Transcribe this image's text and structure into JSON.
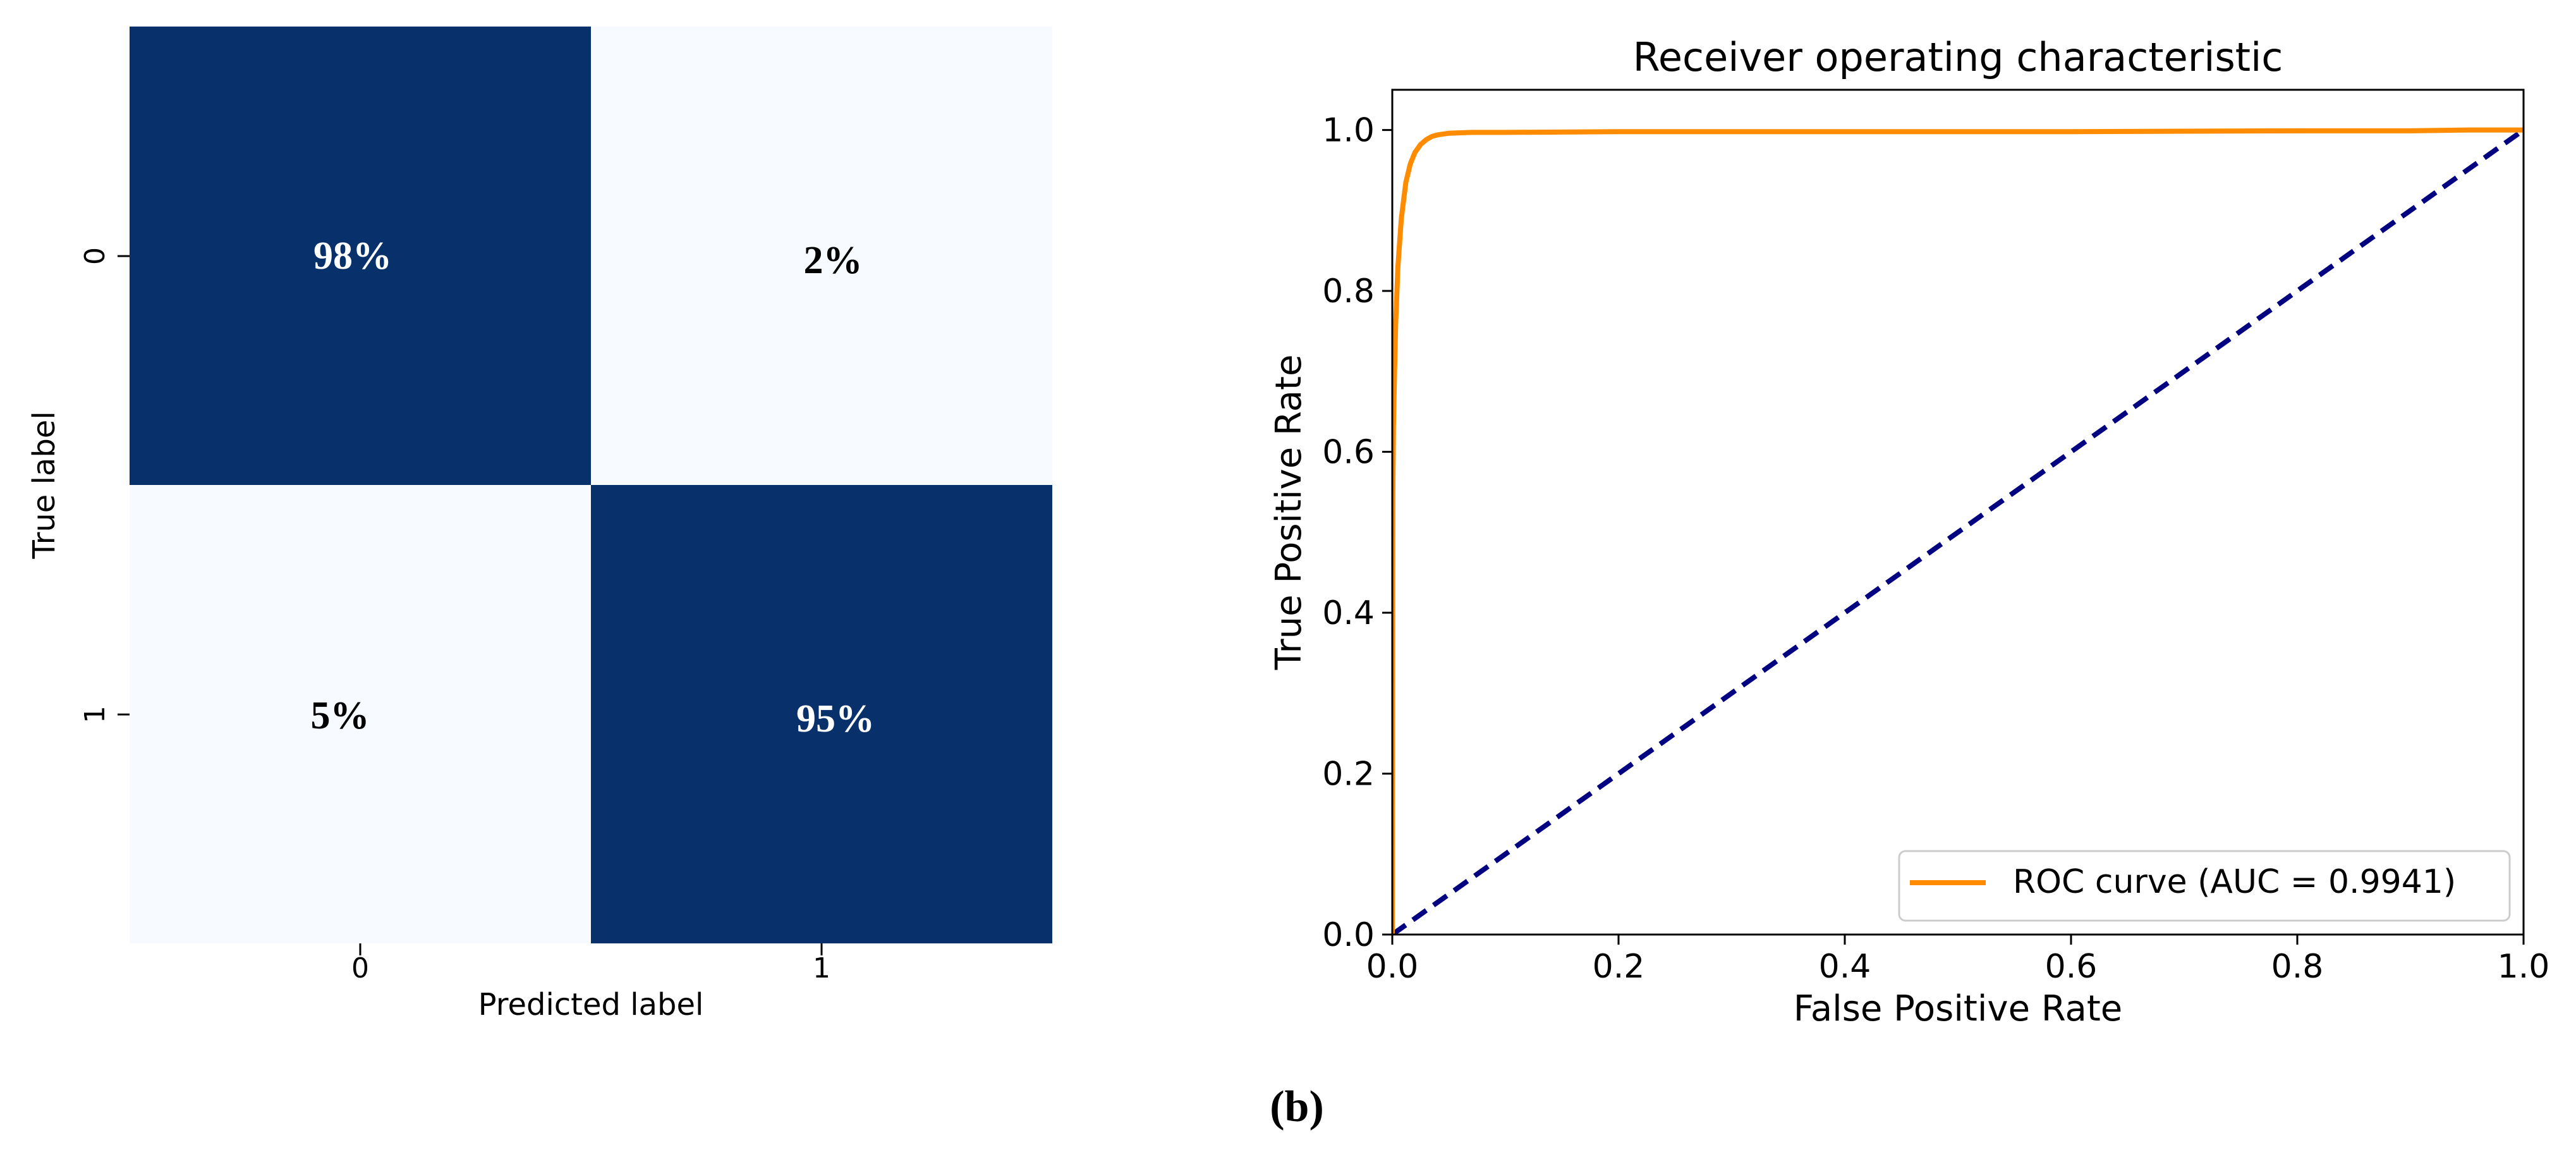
{
  "colors": {
    "dark_cell": "#08306b",
    "light_cell": "#f7fbff",
    "roc_line": "#ff8c00",
    "diagonal": "#000080",
    "axis": "#000000"
  },
  "panel_label": "(b)",
  "chart_data": [
    {
      "type": "heatmap",
      "title": "",
      "xlabel": "Predicted label",
      "ylabel": "True label",
      "x_tick_labels": [
        "0",
        "1"
      ],
      "y_tick_labels": [
        "0",
        "1"
      ],
      "matrix": [
        [
          0.98,
          0.02
        ],
        [
          0.05,
          0.95
        ]
      ],
      "cell_labels": [
        [
          "98%",
          "2%"
        ],
        [
          "5%",
          "95%"
        ]
      ],
      "colorbar": false
    },
    {
      "type": "line",
      "title": "Receiver operating characteristic",
      "xlabel": "False Positive Rate",
      "ylabel": "True Positive Rate",
      "xlim": [
        0.0,
        1.0
      ],
      "ylim": [
        0.0,
        1.05
      ],
      "x_ticks": [
        "0.0",
        "0.2",
        "0.4",
        "0.6",
        "0.8",
        "1.0"
      ],
      "y_ticks": [
        "0.0",
        "0.2",
        "0.4",
        "0.6",
        "0.8",
        "1.0"
      ],
      "legend_position": "bottom-right",
      "series": [
        {
          "name": "ROC curve (AUC = 0.9941)",
          "style": "solid",
          "x": [
            0.0,
            0.0005,
            0.001,
            0.002,
            0.003,
            0.005,
            0.008,
            0.012,
            0.016,
            0.02,
            0.025,
            0.03,
            0.035,
            0.04,
            0.05,
            0.07,
            0.1,
            0.2,
            0.4,
            0.6,
            0.8,
            0.9,
            0.95,
            1.0
          ],
          "y": [
            0.0,
            0.55,
            0.63,
            0.7,
            0.76,
            0.83,
            0.89,
            0.935,
            0.958,
            0.972,
            0.982,
            0.988,
            0.992,
            0.994,
            0.996,
            0.997,
            0.997,
            0.998,
            0.998,
            0.998,
            0.999,
            0.999,
            1.0,
            1.0
          ]
        },
        {
          "name": "",
          "style": "dashed",
          "x": [
            0.0,
            1.0
          ],
          "y": [
            0.0,
            1.0
          ]
        }
      ]
    }
  ]
}
